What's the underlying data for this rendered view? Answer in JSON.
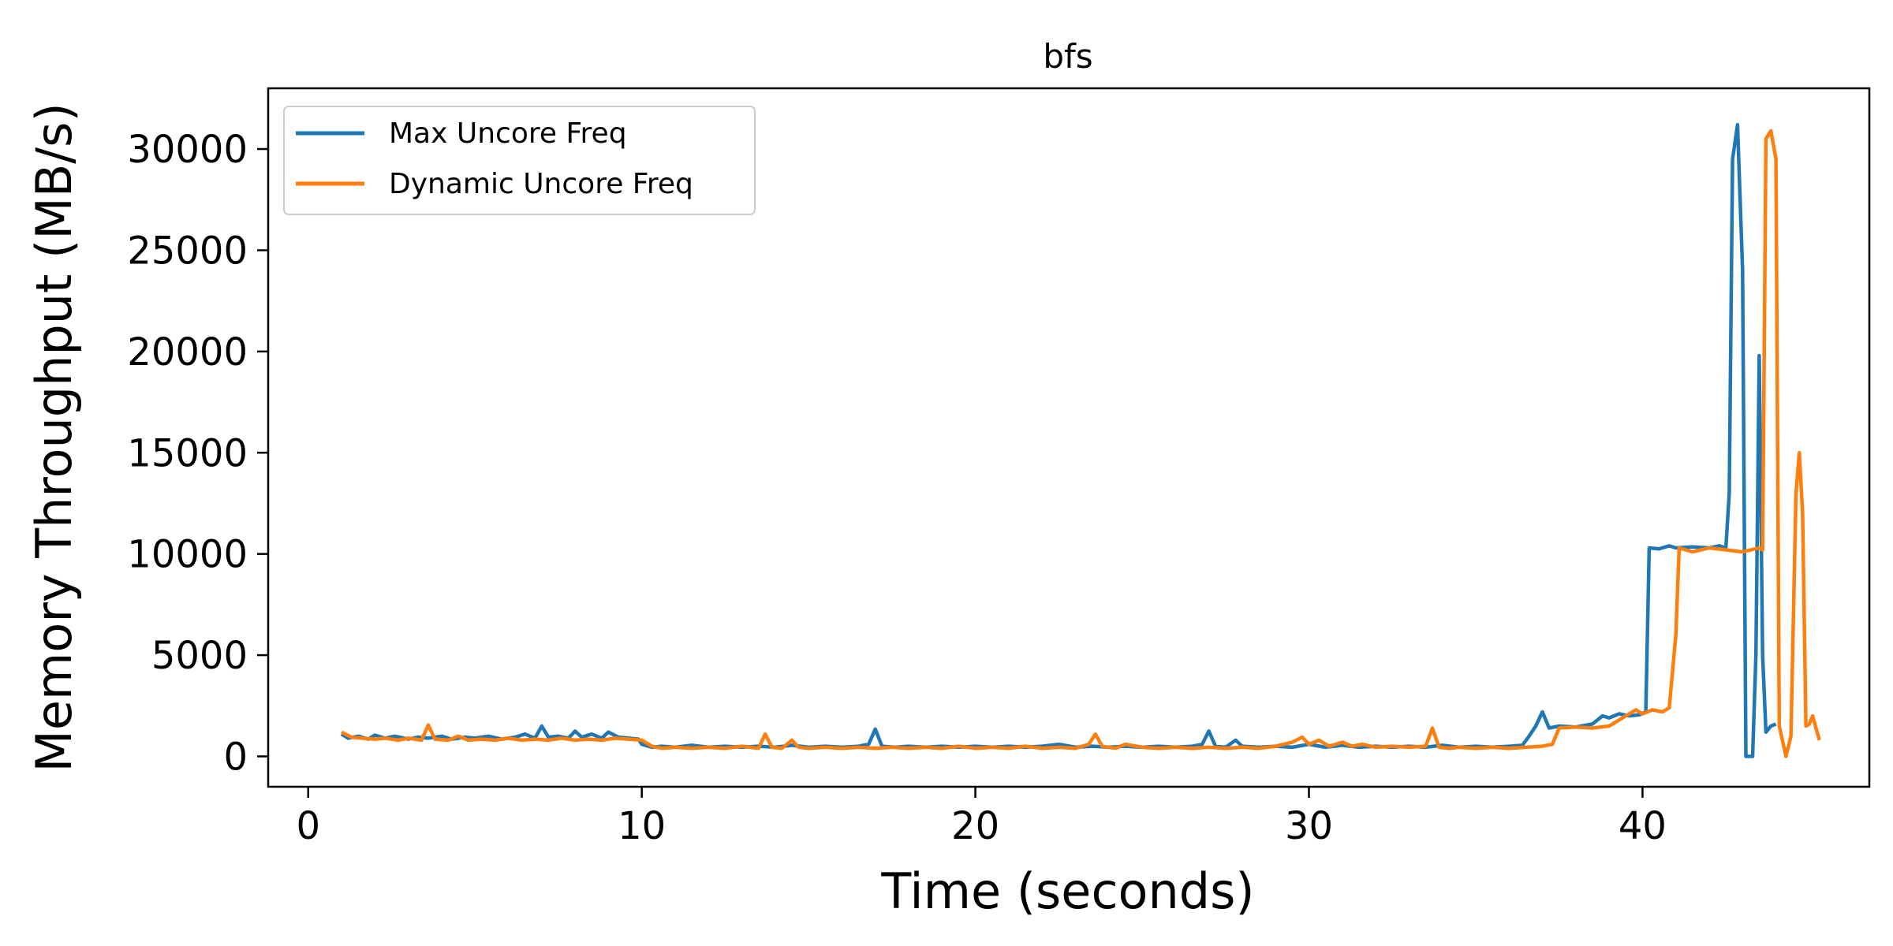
{
  "chart_data": {
    "type": "line",
    "title": "bfs",
    "xlabel": "Time (seconds)",
    "ylabel": "Memory Throughput (MB/s)",
    "xlim": [
      -1.2,
      46.8
    ],
    "ylim": [
      -1500,
      33000
    ],
    "xticks": [
      0,
      10,
      20,
      30,
      40
    ],
    "yticks": [
      0,
      5000,
      10000,
      15000,
      20000,
      25000,
      30000
    ],
    "grid": false,
    "legend_position": "top-left",
    "series": [
      {
        "name": "Max Uncore Freq",
        "color": "#1f77b4",
        "points": [
          [
            1.0,
            1100
          ],
          [
            1.2,
            900
          ],
          [
            1.5,
            1000
          ],
          [
            1.8,
            850
          ],
          [
            2.0,
            1050
          ],
          [
            2.3,
            900
          ],
          [
            2.6,
            1000
          ],
          [
            3.0,
            850
          ],
          [
            3.3,
            950
          ],
          [
            3.6,
            900
          ],
          [
            4.0,
            1000
          ],
          [
            4.3,
            850
          ],
          [
            4.7,
            950
          ],
          [
            5.0,
            900
          ],
          [
            5.4,
            1000
          ],
          [
            5.8,
            850
          ],
          [
            6.2,
            950
          ],
          [
            6.5,
            1100
          ],
          [
            6.8,
            900
          ],
          [
            7.0,
            1500
          ],
          [
            7.2,
            950
          ],
          [
            7.5,
            1000
          ],
          [
            7.8,
            900
          ],
          [
            8.0,
            1250
          ],
          [
            8.2,
            950
          ],
          [
            8.5,
            1100
          ],
          [
            8.8,
            900
          ],
          [
            9.0,
            1200
          ],
          [
            9.3,
            950
          ],
          [
            9.6,
            900
          ],
          [
            9.9,
            850
          ],
          [
            10.0,
            600
          ],
          [
            10.3,
            450
          ],
          [
            10.6,
            500
          ],
          [
            11.0,
            450
          ],
          [
            11.5,
            550
          ],
          [
            12.0,
            450
          ],
          [
            12.5,
            500
          ],
          [
            13.0,
            450
          ],
          [
            13.5,
            500
          ],
          [
            14.0,
            450
          ],
          [
            14.5,
            550
          ],
          [
            15.0,
            450
          ],
          [
            15.5,
            500
          ],
          [
            16.0,
            450
          ],
          [
            16.5,
            500
          ],
          [
            16.8,
            600
          ],
          [
            17.0,
            1350
          ],
          [
            17.2,
            500
          ],
          [
            17.6,
            450
          ],
          [
            18.0,
            500
          ],
          [
            18.5,
            450
          ],
          [
            19.0,
            500
          ],
          [
            19.5,
            450
          ],
          [
            20.0,
            500
          ],
          [
            20.5,
            450
          ],
          [
            21.0,
            500
          ],
          [
            21.5,
            450
          ],
          [
            22.0,
            500
          ],
          [
            22.5,
            600
          ],
          [
            23.0,
            450
          ],
          [
            23.5,
            500
          ],
          [
            24.0,
            450
          ],
          [
            24.5,
            500
          ],
          [
            25.0,
            450
          ],
          [
            25.5,
            500
          ],
          [
            26.0,
            450
          ],
          [
            26.5,
            500
          ],
          [
            26.8,
            600
          ],
          [
            27.0,
            1250
          ],
          [
            27.2,
            500
          ],
          [
            27.5,
            450
          ],
          [
            27.8,
            800
          ],
          [
            28.0,
            500
          ],
          [
            28.5,
            450
          ],
          [
            29.0,
            500
          ],
          [
            29.5,
            450
          ],
          [
            30.0,
            600
          ],
          [
            30.5,
            450
          ],
          [
            31.0,
            550
          ],
          [
            31.5,
            450
          ],
          [
            32.0,
            500
          ],
          [
            32.5,
            450
          ],
          [
            33.0,
            500
          ],
          [
            33.5,
            450
          ],
          [
            34.0,
            550
          ],
          [
            34.5,
            450
          ],
          [
            35.0,
            500
          ],
          [
            35.5,
            450
          ],
          [
            36.0,
            500
          ],
          [
            36.4,
            550
          ],
          [
            36.6,
            1000
          ],
          [
            36.8,
            1500
          ],
          [
            37.0,
            2200
          ],
          [
            37.2,
            1400
          ],
          [
            37.5,
            1500
          ],
          [
            38.0,
            1450
          ],
          [
            38.5,
            1600
          ],
          [
            38.8,
            2000
          ],
          [
            39.0,
            1900
          ],
          [
            39.3,
            2100
          ],
          [
            39.6,
            2000
          ],
          [
            39.9,
            2050
          ],
          [
            40.1,
            2200
          ],
          [
            40.2,
            10300
          ],
          [
            40.5,
            10250
          ],
          [
            40.8,
            10400
          ],
          [
            41.0,
            10300
          ],
          [
            41.5,
            10350
          ],
          [
            42.0,
            10300
          ],
          [
            42.3,
            10400
          ],
          [
            42.5,
            10300
          ],
          [
            42.6,
            13000
          ],
          [
            42.7,
            29500
          ],
          [
            42.85,
            31200
          ],
          [
            43.0,
            24000
          ],
          [
            43.1,
            0
          ],
          [
            43.3,
            0
          ],
          [
            43.4,
            5000
          ],
          [
            43.5,
            19800
          ],
          [
            43.6,
            5000
          ],
          [
            43.7,
            1200
          ],
          [
            43.85,
            1500
          ],
          [
            44.0,
            1600
          ]
        ]
      },
      {
        "name": "Dynamic Uncore Freq",
        "color": "#ff7f0e",
        "points": [
          [
            1.0,
            1200
          ],
          [
            1.3,
            950
          ],
          [
            1.6,
            900
          ],
          [
            2.0,
            850
          ],
          [
            2.3,
            900
          ],
          [
            2.7,
            800
          ],
          [
            3.0,
            900
          ],
          [
            3.4,
            800
          ],
          [
            3.6,
            1550
          ],
          [
            3.8,
            850
          ],
          [
            4.2,
            800
          ],
          [
            4.5,
            1000
          ],
          [
            4.8,
            800
          ],
          [
            5.2,
            850
          ],
          [
            5.6,
            800
          ],
          [
            6.0,
            900
          ],
          [
            6.4,
            800
          ],
          [
            6.8,
            850
          ],
          [
            7.2,
            800
          ],
          [
            7.6,
            900
          ],
          [
            8.0,
            800
          ],
          [
            8.4,
            850
          ],
          [
            8.8,
            800
          ],
          [
            9.2,
            900
          ],
          [
            9.6,
            850
          ],
          [
            10.0,
            800
          ],
          [
            10.3,
            500
          ],
          [
            10.6,
            400
          ],
          [
            11.0,
            450
          ],
          [
            11.5,
            400
          ],
          [
            12.0,
            450
          ],
          [
            12.5,
            400
          ],
          [
            13.0,
            500
          ],
          [
            13.5,
            400
          ],
          [
            13.7,
            1100
          ],
          [
            13.9,
            450
          ],
          [
            14.2,
            400
          ],
          [
            14.5,
            800
          ],
          [
            14.7,
            450
          ],
          [
            15.0,
            400
          ],
          [
            15.5,
            450
          ],
          [
            16.0,
            400
          ],
          [
            16.5,
            450
          ],
          [
            17.0,
            400
          ],
          [
            17.5,
            450
          ],
          [
            18.0,
            400
          ],
          [
            18.5,
            450
          ],
          [
            19.0,
            400
          ],
          [
            19.5,
            500
          ],
          [
            20.0,
            400
          ],
          [
            20.5,
            450
          ],
          [
            21.0,
            400
          ],
          [
            21.5,
            500
          ],
          [
            22.0,
            400
          ],
          [
            22.5,
            450
          ],
          [
            23.0,
            400
          ],
          [
            23.4,
            600
          ],
          [
            23.6,
            1100
          ],
          [
            23.8,
            500
          ],
          [
            24.2,
            400
          ],
          [
            24.5,
            600
          ],
          [
            25.0,
            450
          ],
          [
            25.5,
            400
          ],
          [
            26.0,
            450
          ],
          [
            26.5,
            400
          ],
          [
            27.0,
            450
          ],
          [
            27.5,
            400
          ],
          [
            28.0,
            450
          ],
          [
            28.5,
            400
          ],
          [
            29.0,
            500
          ],
          [
            29.5,
            700
          ],
          [
            29.8,
            950
          ],
          [
            30.0,
            600
          ],
          [
            30.3,
            800
          ],
          [
            30.6,
            500
          ],
          [
            31.0,
            700
          ],
          [
            31.3,
            500
          ],
          [
            31.6,
            600
          ],
          [
            32.0,
            450
          ],
          [
            32.5,
            500
          ],
          [
            33.0,
            450
          ],
          [
            33.5,
            500
          ],
          [
            33.7,
            1400
          ],
          [
            33.9,
            450
          ],
          [
            34.2,
            400
          ],
          [
            34.5,
            450
          ],
          [
            35.0,
            400
          ],
          [
            35.5,
            450
          ],
          [
            36.0,
            400
          ],
          [
            36.5,
            450
          ],
          [
            37.0,
            500
          ],
          [
            37.3,
            600
          ],
          [
            37.5,
            1400
          ],
          [
            38.0,
            1450
          ],
          [
            38.5,
            1400
          ],
          [
            39.0,
            1500
          ],
          [
            39.3,
            1800
          ],
          [
            39.6,
            2100
          ],
          [
            39.8,
            2300
          ],
          [
            40.0,
            2100
          ],
          [
            40.3,
            2300
          ],
          [
            40.6,
            2200
          ],
          [
            40.8,
            2400
          ],
          [
            41.0,
            6000
          ],
          [
            41.1,
            10300
          ],
          [
            41.5,
            10100
          ],
          [
            42.0,
            10300
          ],
          [
            42.5,
            10200
          ],
          [
            43.0,
            10100
          ],
          [
            43.5,
            10300
          ],
          [
            43.6,
            10200
          ],
          [
            43.7,
            30500
          ],
          [
            43.85,
            30900
          ],
          [
            44.0,
            29500
          ],
          [
            44.1,
            1500
          ],
          [
            44.3,
            0
          ],
          [
            44.45,
            1000
          ],
          [
            44.6,
            13000
          ],
          [
            44.7,
            15000
          ],
          [
            44.8,
            12000
          ],
          [
            44.9,
            1500
          ],
          [
            45.0,
            1600
          ],
          [
            45.1,
            2000
          ],
          [
            45.3,
            800
          ]
        ]
      }
    ]
  }
}
